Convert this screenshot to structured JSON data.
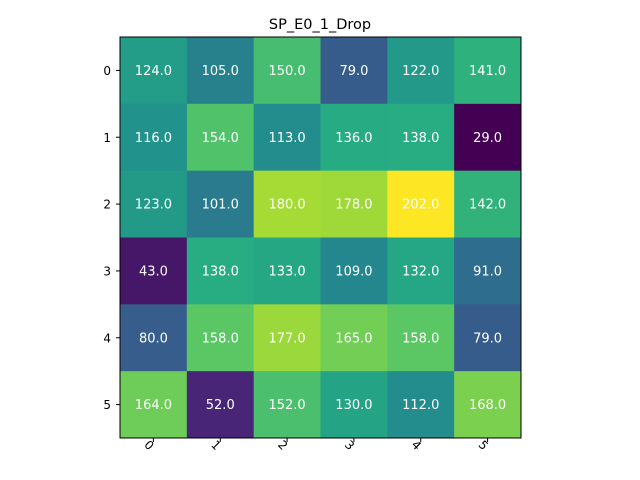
{
  "chart_data": {
    "type": "heatmap",
    "title": "SP_E0_1_Drop",
    "xlabel": "",
    "ylabel": "",
    "x_tick_labels": [
      "0",
      "1",
      "2",
      "3",
      "4",
      "5"
    ],
    "y_tick_labels": [
      "0",
      "1",
      "2",
      "3",
      "4",
      "5"
    ],
    "values": [
      [
        124.0,
        105.0,
        150.0,
        79.0,
        122.0,
        141.0
      ],
      [
        116.0,
        154.0,
        113.0,
        136.0,
        138.0,
        29.0
      ],
      [
        123.0,
        101.0,
        180.0,
        178.0,
        202.0,
        142.0
      ],
      [
        43.0,
        138.0,
        133.0,
        109.0,
        132.0,
        91.0
      ],
      [
        80.0,
        158.0,
        177.0,
        165.0,
        158.0,
        79.0
      ],
      [
        164.0,
        52.0,
        152.0,
        130.0,
        112.0,
        168.0
      ]
    ],
    "value_labels": [
      [
        "124.0",
        "105.0",
        "150.0",
        "79.0",
        "122.0",
        "141.0"
      ],
      [
        "116.0",
        "154.0",
        "113.0",
        "136.0",
        "138.0",
        "29.0"
      ],
      [
        "123.0",
        "101.0",
        "180.0",
        "178.0",
        "202.0",
        "142.0"
      ],
      [
        "43.0",
        "138.0",
        "133.0",
        "109.0",
        "132.0",
        "91.0"
      ],
      [
        "80.0",
        "158.0",
        "177.0",
        "165.0",
        "158.0",
        "79.0"
      ],
      [
        "164.0",
        "52.0",
        "152.0",
        "130.0",
        "112.0",
        "168.0"
      ]
    ],
    "colormap": "viridis",
    "color_range": [
      29.0,
      202.0
    ],
    "value_label_color": "#ffffff",
    "x_tick_rotation_deg": 45,
    "colorbar": false,
    "grid": false
  }
}
